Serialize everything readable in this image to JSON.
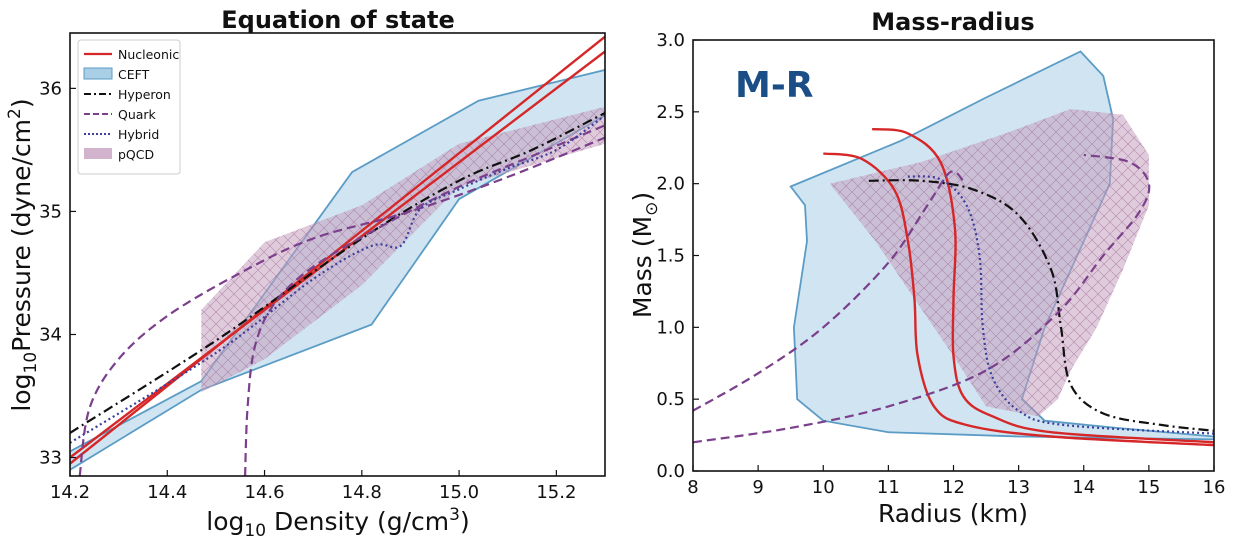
{
  "chart_data": [
    {
      "type": "line",
      "title": "Equation of state",
      "xlabel_main": "log",
      "xlabel_sub": "10",
      "xlabel_rest": " Density (g/cm",
      "xlabel_sup": "3",
      "xlabel_end": ")",
      "ylabel_main": "log",
      "ylabel_sub": "10",
      "ylabel_rest": "Pressure (dyne/cm",
      "ylabel_sup": "2",
      "ylabel_end": ")",
      "xlim": [
        14.2,
        15.3
      ],
      "ylim": [
        32.85,
        36.45
      ],
      "xticks": [
        "14.2",
        "14.4",
        "14.6",
        "14.8",
        "15.0",
        "15.2"
      ],
      "xtick_values": [
        14.2,
        14.4,
        14.6,
        14.8,
        15.0,
        15.2
      ],
      "yticks": [
        "33",
        "34",
        "35",
        "36"
      ],
      "ytick_values": [
        33,
        34,
        35,
        36
      ],
      "legend": [
        "Nucleonic",
        "CEFT",
        "Hyperon",
        "Quark",
        "Hybrid",
        "pQCD"
      ],
      "legend_position": "top-left",
      "bands": [
        {
          "name": "CEFT",
          "color": "#a9cfe6",
          "edge": "#5b9cc6",
          "points": [
            [
              14.2,
              32.9
            ],
            [
              14.47,
              33.55
            ],
            [
              14.82,
              34.08
            ],
            [
              15.0,
              35.1
            ],
            [
              15.3,
              35.78
            ],
            [
              15.3,
              36.15
            ],
            [
              15.04,
              35.9
            ],
            [
              14.78,
              35.32
            ],
            [
              14.47,
              33.62
            ],
            [
              14.2,
              33.05
            ]
          ]
        },
        {
          "name": "pQCD",
          "color": "#c7a0c0",
          "points": [
            [
              14.47,
              33.53
            ],
            [
              14.6,
              33.8
            ],
            [
              14.8,
              34.4
            ],
            [
              15.0,
              35.2
            ],
            [
              15.3,
              35.55
            ],
            [
              15.3,
              35.85
            ],
            [
              15.0,
              35.55
            ],
            [
              14.8,
              35.05
            ],
            [
              14.6,
              34.75
            ],
            [
              14.47,
              34.2
            ]
          ]
        }
      ],
      "series": [
        {
          "name": "Nucleonic",
          "color": "#d62728",
          "style": "solid",
          "points": [
            [
              14.2,
              32.95
            ],
            [
              15.3,
              36.42
            ]
          ]
        },
        {
          "name": "Nucleonic",
          "color": "#d62728",
          "style": "solid",
          "points": [
            [
              14.2,
              33.0
            ],
            [
              15.3,
              36.3
            ]
          ]
        },
        {
          "name": "Hyperon",
          "color": "#111111",
          "style": "dashdot",
          "points": [
            [
              14.2,
              33.2
            ],
            [
              14.5,
              33.95
            ],
            [
              14.8,
              34.78
            ],
            [
              15.0,
              35.25
            ],
            [
              15.15,
              35.5
            ],
            [
              15.3,
              35.8
            ]
          ]
        },
        {
          "name": "Quark",
          "color": "#7b3f8c",
          "style": "dashed",
          "points": [
            [
              14.22,
              32.85
            ],
            [
              14.24,
              33.4
            ],
            [
              14.3,
              33.8
            ],
            [
              14.4,
              34.15
            ],
            [
              14.55,
              34.5
            ],
            [
              14.7,
              34.78
            ],
            [
              14.9,
              35.0
            ],
            [
              15.1,
              35.28
            ],
            [
              15.3,
              35.6
            ]
          ]
        },
        {
          "name": "Quark",
          "color": "#7b3f8c",
          "style": "dashed",
          "points": [
            [
              14.56,
              32.85
            ],
            [
              14.565,
              33.4
            ],
            [
              14.58,
              33.9
            ],
            [
              14.62,
              34.25
            ],
            [
              14.7,
              34.55
            ],
            [
              14.85,
              34.9
            ],
            [
              15.0,
              35.2
            ],
            [
              15.15,
              35.45
            ],
            [
              15.3,
              35.7
            ]
          ]
        },
        {
          "name": "Hybrid",
          "color": "#3b3f9c",
          "style": "dotted",
          "points": [
            [
              14.2,
              33.12
            ],
            [
              14.5,
              33.85
            ],
            [
              14.7,
              34.45
            ],
            [
              14.82,
              34.72
            ],
            [
              14.88,
              34.72
            ],
            [
              14.92,
              35.02
            ],
            [
              15.0,
              35.18
            ],
            [
              15.1,
              35.35
            ],
            [
              15.2,
              35.5
            ],
            [
              15.3,
              35.78
            ]
          ]
        }
      ]
    },
    {
      "type": "line",
      "title": "Mass-radius",
      "badge": "M-R",
      "badge_color": "#1b4e86",
      "xlabel": "Radius (km)",
      "ylabel_main": "Mass (M",
      "ylabel_sub": "⊙",
      "ylabel_end": ")",
      "xlim": [
        8,
        16
      ],
      "ylim": [
        0.0,
        3.0
      ],
      "xticks": [
        "8",
        "9",
        "10",
        "11",
        "12",
        "13",
        "14",
        "15",
        "16"
      ],
      "xtick_values": [
        8,
        9,
        10,
        11,
        12,
        13,
        14,
        15,
        16
      ],
      "yticks": [
        "0.0",
        "0.5",
        "1.0",
        "1.5",
        "2.0",
        "2.5",
        "3.0"
      ],
      "ytick_values": [
        0.0,
        0.5,
        1.0,
        1.5,
        2.0,
        2.5,
        3.0
      ],
      "bands": [
        {
          "name": "CEFT",
          "color": "#a9cfe6",
          "edge": "#5b9cc6",
          "points": [
            [
              9.5,
              1.98
            ],
            [
              11.2,
              2.3
            ],
            [
              12.5,
              2.6
            ],
            [
              13.95,
              2.92
            ],
            [
              14.3,
              2.75
            ],
            [
              14.45,
              2.45
            ],
            [
              14.4,
              2.0
            ],
            [
              14.0,
              1.6
            ],
            [
              13.4,
              1.0
            ],
            [
              13.05,
              0.5
            ],
            [
              13.4,
              0.35
            ],
            [
              14.5,
              0.3
            ],
            [
              16,
              0.24
            ],
            [
              16,
              0.22
            ],
            [
              13.0,
              0.24
            ],
            [
              11.0,
              0.27
            ],
            [
              10.0,
              0.35
            ],
            [
              9.6,
              0.5
            ],
            [
              9.55,
              1.0
            ],
            [
              9.75,
              1.6
            ],
            [
              9.72,
              1.85
            ]
          ]
        },
        {
          "name": "pQCD",
          "color": "#c7a0c0",
          "points": [
            [
              10.1,
              2.0
            ],
            [
              11.5,
              2.15
            ],
            [
              12.8,
              2.35
            ],
            [
              13.8,
              2.52
            ],
            [
              14.6,
              2.48
            ],
            [
              15.0,
              2.2
            ],
            [
              15.0,
              1.85
            ],
            [
              14.6,
              1.4
            ],
            [
              14.2,
              1.0
            ],
            [
              13.8,
              0.7
            ],
            [
              13.6,
              0.5
            ],
            [
              13.3,
              0.38
            ],
            [
              12.5,
              0.45
            ],
            [
              12.0,
              0.8
            ],
            [
              11.4,
              1.2
            ],
            [
              10.8,
              1.6
            ]
          ]
        }
      ],
      "series": [
        {
          "name": "Nucleonic",
          "color": "#d62728",
          "style": "solid",
          "points": [
            [
              10.0,
              2.21
            ],
            [
              10.6,
              2.17
            ],
            [
              11.1,
              1.95
            ],
            [
              11.3,
              1.6
            ],
            [
              11.4,
              1.2
            ],
            [
              11.45,
              0.8
            ],
            [
              11.7,
              0.45
            ],
            [
              12.2,
              0.32
            ],
            [
              13.5,
              0.24
            ],
            [
              16,
              0.18
            ]
          ]
        },
        {
          "name": "Nucleonic",
          "color": "#d62728",
          "style": "solid",
          "points": [
            [
              10.75,
              2.38
            ],
            [
              11.3,
              2.35
            ],
            [
              11.8,
              2.15
            ],
            [
              12.02,
              1.7
            ],
            [
              12.0,
              1.2
            ],
            [
              12.0,
              0.8
            ],
            [
              12.15,
              0.52
            ],
            [
              12.6,
              0.38
            ],
            [
              13.5,
              0.27
            ],
            [
              16,
              0.2
            ]
          ]
        },
        {
          "name": "Hyperon",
          "color": "#111111",
          "style": "dashdot",
          "points": [
            [
              10.7,
              2.02
            ],
            [
              11.5,
              2.02
            ],
            [
              12.3,
              1.96
            ],
            [
              13.0,
              1.78
            ],
            [
              13.5,
              1.4
            ],
            [
              13.65,
              1.0
            ],
            [
              13.8,
              0.6
            ],
            [
              14.3,
              0.4
            ],
            [
              15.2,
              0.32
            ],
            [
              16,
              0.28
            ]
          ]
        },
        {
          "name": "Quark",
          "color": "#7b3f8c",
          "style": "dashed",
          "points": [
            [
              8.0,
              0.42
            ],
            [
              9.0,
              0.68
            ],
            [
              10.0,
              1.0
            ],
            [
              11.0,
              1.45
            ],
            [
              11.6,
              1.85
            ],
            [
              11.95,
              2.08
            ],
            [
              12.15,
              2.02
            ]
          ]
        },
        {
          "name": "Quark",
          "color": "#7b3f8c",
          "style": "dashed",
          "points": [
            [
              8.0,
              0.2
            ],
            [
              9.5,
              0.3
            ],
            [
              11.0,
              0.45
            ],
            [
              12.5,
              0.7
            ],
            [
              13.6,
              1.1
            ],
            [
              14.3,
              1.5
            ],
            [
              14.85,
              1.8
            ],
            [
              15.0,
              2.0
            ],
            [
              14.7,
              2.15
            ],
            [
              14.0,
              2.2
            ]
          ]
        },
        {
          "name": "Hybrid",
          "color": "#3b3f9c",
          "style": "dotted",
          "points": [
            [
              11.3,
              2.05
            ],
            [
              11.8,
              2.03
            ],
            [
              12.2,
              1.85
            ],
            [
              12.4,
              1.5
            ],
            [
              12.45,
              1.0
            ],
            [
              12.6,
              0.65
            ],
            [
              13.0,
              0.42
            ],
            [
              13.7,
              0.32
            ],
            [
              16,
              0.26
            ]
          ]
        }
      ]
    }
  ]
}
